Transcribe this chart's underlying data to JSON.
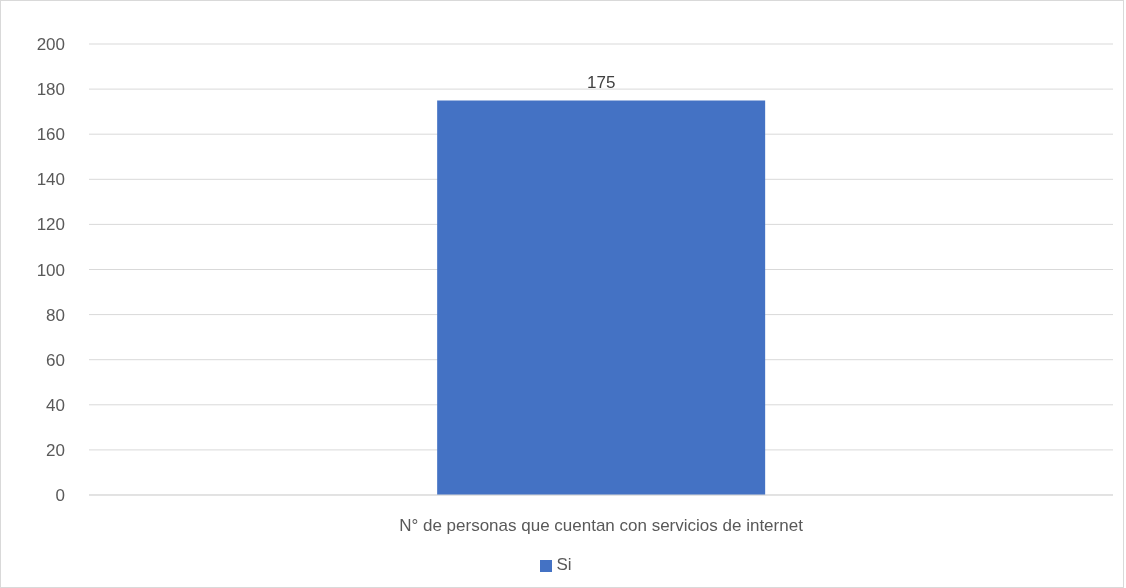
{
  "chart_data": {
    "type": "bar",
    "categories": [
      "N° de personas que cuentan con servicios de internet"
    ],
    "series": [
      {
        "name": "Si",
        "color": "#4472c4",
        "values": [
          175
        ]
      }
    ],
    "ylim": [
      0,
      200
    ],
    "yticks": [
      0,
      20,
      40,
      60,
      80,
      100,
      120,
      140,
      160,
      180,
      200
    ],
    "grid": "y",
    "legend": "bottom",
    "data_labels": true
  }
}
